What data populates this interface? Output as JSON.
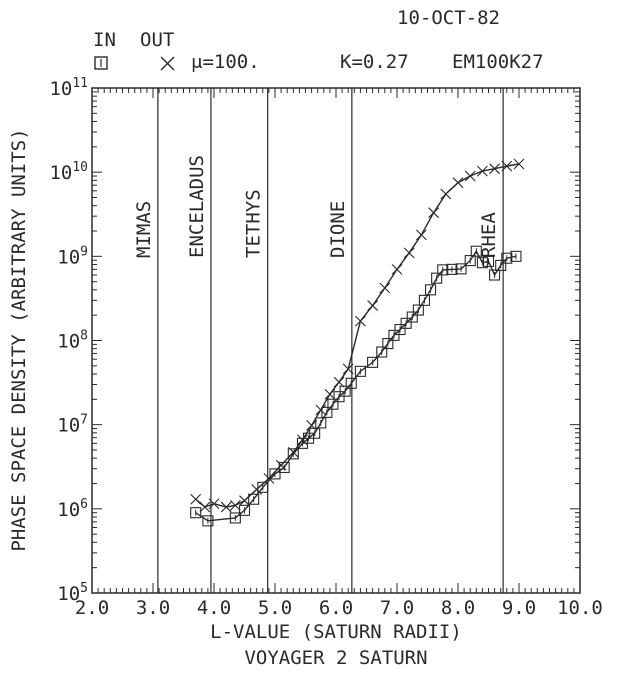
{
  "header": {
    "date": "10-OCT-82",
    "legend_in_label": "IN",
    "legend_out_label": "OUT",
    "mu_label": "μ=100.",
    "k_label": "K=0.27",
    "run_id": "EM100K27"
  },
  "chart_data": {
    "type": "scatter",
    "title": "VOYAGER 2 SATURN",
    "xlabel": "L-VALUE (SATURN RADII)",
    "ylabel": "PHASE SPACE DENSITY (ARBITRARY UNITS)",
    "xlim": [
      2.0,
      10.0
    ],
    "ylim": [
      100000,
      100000000000
    ],
    "y_scale": "log",
    "x_tick_labels": [
      "2.0",
      "3.0",
      "4.0",
      "5.0",
      "6.0",
      "7.0",
      "8.0",
      "9.0",
      "10.0"
    ],
    "y_tick_labels": [
      {
        "base": "10",
        "exp": "5"
      },
      {
        "base": "10",
        "exp": "6"
      },
      {
        "base": "10",
        "exp": "7"
      },
      {
        "base": "10",
        "exp": "8"
      },
      {
        "base": "10",
        "exp": "9"
      },
      {
        "base": "10",
        "exp": "10"
      },
      {
        "base": "10",
        "exp": "11"
      }
    ],
    "moons": [
      {
        "name": "MIMAS",
        "l": 3.08
      },
      {
        "name": "ENCELADUS",
        "l": 3.95
      },
      {
        "name": "TETHYS",
        "l": 4.88
      },
      {
        "name": "DIONE",
        "l": 6.26
      },
      {
        "name": "RHEA",
        "l": 8.74
      }
    ],
    "series": [
      {
        "name": "IN",
        "marker": "square",
        "points": [
          [
            3.7,
            900000
          ],
          [
            3.9,
            720000
          ],
          [
            4.35,
            780000
          ],
          [
            4.5,
            960000
          ],
          [
            4.65,
            1300000
          ],
          [
            4.8,
            1800000
          ],
          [
            5.0,
            2600000
          ],
          [
            5.15,
            3100000
          ],
          [
            5.3,
            4500000
          ],
          [
            5.45,
            6000000
          ],
          [
            5.55,
            6900000
          ],
          [
            5.65,
            7900000
          ],
          [
            5.75,
            10500000
          ],
          [
            5.85,
            14000000
          ],
          [
            5.95,
            17500000
          ],
          [
            6.05,
            21500000
          ],
          [
            6.15,
            25000000
          ],
          [
            6.25,
            31000000
          ],
          [
            6.4,
            43000000
          ],
          [
            6.6,
            55000000
          ],
          [
            6.75,
            73000000
          ],
          [
            6.85,
            92000000
          ],
          [
            6.95,
            115000000
          ],
          [
            7.05,
            135000000
          ],
          [
            7.15,
            160000000
          ],
          [
            7.25,
            190000000
          ],
          [
            7.35,
            230000000
          ],
          [
            7.45,
            300000000
          ],
          [
            7.55,
            400000000
          ],
          [
            7.65,
            550000000
          ],
          [
            7.75,
            690000000
          ],
          [
            7.9,
            700000000
          ],
          [
            8.05,
            710000000
          ],
          [
            8.2,
            890000000
          ],
          [
            8.3,
            1150000000
          ],
          [
            8.4,
            840000000
          ],
          [
            8.5,
            870000000
          ],
          [
            8.6,
            600000000
          ],
          [
            8.7,
            780000000
          ],
          [
            8.8,
            950000000
          ],
          [
            8.95,
            1000000000
          ]
        ]
      },
      {
        "name": "OUT",
        "marker": "x",
        "points": [
          [
            3.7,
            1300000
          ],
          [
            3.85,
            1050000
          ],
          [
            4.0,
            1150000
          ],
          [
            4.2,
            1050000
          ],
          [
            4.35,
            1100000
          ],
          [
            4.5,
            1250000
          ],
          [
            4.7,
            1700000
          ],
          [
            4.9,
            2300000
          ],
          [
            5.1,
            3300000
          ],
          [
            5.3,
            4700000
          ],
          [
            5.45,
            6600000
          ],
          [
            5.6,
            9800000
          ],
          [
            5.75,
            15000000
          ],
          [
            5.9,
            23000000
          ],
          [
            6.05,
            32000000
          ],
          [
            6.2,
            46000000
          ],
          [
            6.4,
            170000000
          ],
          [
            6.6,
            260000000
          ],
          [
            6.8,
            420000000
          ],
          [
            7.0,
            700000000
          ],
          [
            7.2,
            1100000000
          ],
          [
            7.4,
            1800000000
          ],
          [
            7.6,
            3300000000
          ],
          [
            7.8,
            5500000000
          ],
          [
            8.0,
            7500000000
          ],
          [
            8.2,
            9000000000
          ],
          [
            8.4,
            10300000000
          ],
          [
            8.6,
            11000000000
          ],
          [
            8.8,
            11800000000
          ],
          [
            9.0,
            12500000000
          ]
        ]
      }
    ]
  }
}
